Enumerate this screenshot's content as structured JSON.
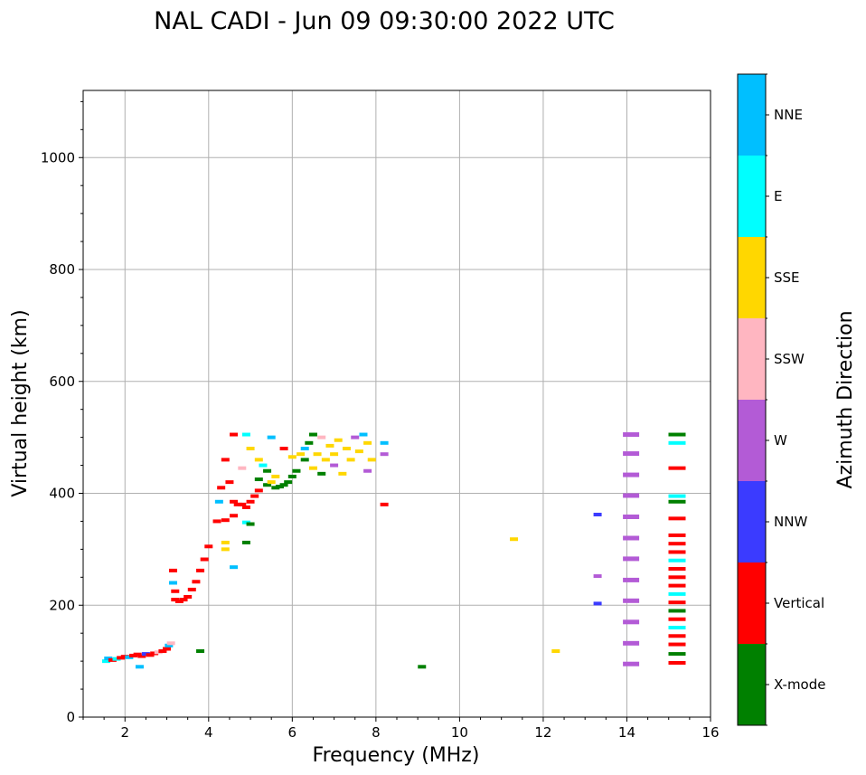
{
  "chart_data": {
    "type": "scatter",
    "title": "NAL CADI - Jun 09 09:30:00 2022 UTC",
    "xlabel": "Frequency (MHz)",
    "ylabel": "Virtual height (km)",
    "xlim": [
      1,
      16
    ],
    "ylim": [
      0,
      1120
    ],
    "xticks": [
      2,
      4,
      6,
      8,
      10,
      12,
      14,
      16
    ],
    "yticks": [
      0,
      200,
      400,
      600,
      800,
      1000
    ],
    "grid": true,
    "colorbar": {
      "title": "Azimuth Direction",
      "categories": [
        {
          "name": "X-mode",
          "color": "#008000"
        },
        {
          "name": "Vertical",
          "color": "#ff0000"
        },
        {
          "name": "NNW",
          "color": "#3b3bff"
        },
        {
          "name": "W",
          "color": "#b35bd6"
        },
        {
          "name": "SSW",
          "color": "#ffb6c1"
        },
        {
          "name": "SSE",
          "color": "#ffd700"
        },
        {
          "name": "E",
          "color": "#00ffff"
        },
        {
          "name": "NNE",
          "color": "#00bfff"
        }
      ]
    },
    "points": [
      {
        "f": 1.55,
        "h": 100,
        "c": "E"
      },
      {
        "f": 1.6,
        "h": 105,
        "c": "NNE"
      },
      {
        "f": 1.7,
        "h": 102,
        "c": "Vertical"
      },
      {
        "f": 1.8,
        "h": 104,
        "c": "E"
      },
      {
        "f": 1.9,
        "h": 106,
        "c": "Vertical"
      },
      {
        "f": 2.0,
        "h": 108,
        "c": "Vertical"
      },
      {
        "f": 2.1,
        "h": 107,
        "c": "NNE"
      },
      {
        "f": 2.2,
        "h": 110,
        "c": "Vertical"
      },
      {
        "f": 2.3,
        "h": 112,
        "c": "Vertical"
      },
      {
        "f": 2.4,
        "h": 109,
        "c": "Vertical"
      },
      {
        "f": 2.5,
        "h": 113,
        "c": "NNW"
      },
      {
        "f": 2.6,
        "h": 111,
        "c": "Vertical"
      },
      {
        "f": 2.7,
        "h": 114,
        "c": "Vertical"
      },
      {
        "f": 2.8,
        "h": 116,
        "c": "SSW"
      },
      {
        "f": 2.9,
        "h": 118,
        "c": "Vertical"
      },
      {
        "f": 3.0,
        "h": 122,
        "c": "Vertical"
      },
      {
        "f": 3.05,
        "h": 128,
        "c": "NNE"
      },
      {
        "f": 3.1,
        "h": 132,
        "c": "SSW"
      },
      {
        "f": 2.35,
        "h": 90,
        "c": "NNE"
      },
      {
        "f": 3.8,
        "h": 118,
        "c": "X-mode"
      },
      {
        "f": 3.15,
        "h": 262,
        "c": "Vertical"
      },
      {
        "f": 3.15,
        "h": 240,
        "c": "NNE"
      },
      {
        "f": 3.2,
        "h": 225,
        "c": "Vertical"
      },
      {
        "f": 3.2,
        "h": 210,
        "c": "Vertical"
      },
      {
        "f": 3.3,
        "h": 207,
        "c": "Vertical"
      },
      {
        "f": 3.4,
        "h": 210,
        "c": "Vertical"
      },
      {
        "f": 3.5,
        "h": 215,
        "c": "Vertical"
      },
      {
        "f": 3.6,
        "h": 228,
        "c": "Vertical"
      },
      {
        "f": 3.7,
        "h": 242,
        "c": "Vertical"
      },
      {
        "f": 3.8,
        "h": 262,
        "c": "Vertical"
      },
      {
        "f": 3.9,
        "h": 282,
        "c": "Vertical"
      },
      {
        "f": 4.0,
        "h": 305,
        "c": "Vertical"
      },
      {
        "f": 4.2,
        "h": 350,
        "c": "Vertical"
      },
      {
        "f": 4.25,
        "h": 385,
        "c": "NNE"
      },
      {
        "f": 4.3,
        "h": 410,
        "c": "Vertical"
      },
      {
        "f": 4.4,
        "h": 352,
        "c": "Vertical"
      },
      {
        "f": 4.4,
        "h": 460,
        "c": "Vertical"
      },
      {
        "f": 4.4,
        "h": 300,
        "c": "SSE"
      },
      {
        "f": 4.4,
        "h": 312,
        "c": "SSE"
      },
      {
        "f": 4.5,
        "h": 420,
        "c": "Vertical"
      },
      {
        "f": 4.6,
        "h": 360,
        "c": "Vertical"
      },
      {
        "f": 4.6,
        "h": 385,
        "c": "Vertical"
      },
      {
        "f": 4.6,
        "h": 505,
        "c": "Vertical"
      },
      {
        "f": 4.6,
        "h": 268,
        "c": "NNE"
      },
      {
        "f": 4.7,
        "h": 380,
        "c": "Vertical"
      },
      {
        "f": 4.8,
        "h": 380,
        "c": "Vertical"
      },
      {
        "f": 4.8,
        "h": 445,
        "c": "SSW"
      },
      {
        "f": 4.9,
        "h": 375,
        "c": "Vertical"
      },
      {
        "f": 4.9,
        "h": 312,
        "c": "X-mode"
      },
      {
        "f": 4.9,
        "h": 348,
        "c": "E"
      },
      {
        "f": 4.9,
        "h": 505,
        "c": "E"
      },
      {
        "f": 5.0,
        "h": 345,
        "c": "X-mode"
      },
      {
        "f": 5.0,
        "h": 385,
        "c": "Vertical"
      },
      {
        "f": 5.0,
        "h": 480,
        "c": "SSE"
      },
      {
        "f": 5.1,
        "h": 395,
        "c": "Vertical"
      },
      {
        "f": 5.2,
        "h": 405,
        "c": "Vertical"
      },
      {
        "f": 5.2,
        "h": 425,
        "c": "X-mode"
      },
      {
        "f": 5.2,
        "h": 460,
        "c": "SSE"
      },
      {
        "f": 5.3,
        "h": 450,
        "c": "E"
      },
      {
        "f": 5.4,
        "h": 440,
        "c": "X-mode"
      },
      {
        "f": 5.4,
        "h": 415,
        "c": "X-mode"
      },
      {
        "f": 5.5,
        "h": 420,
        "c": "SSE"
      },
      {
        "f": 5.5,
        "h": 500,
        "c": "NNE"
      },
      {
        "f": 5.6,
        "h": 410,
        "c": "X-mode"
      },
      {
        "f": 5.6,
        "h": 430,
        "c": "SSE"
      },
      {
        "f": 5.7,
        "h": 412,
        "c": "X-mode"
      },
      {
        "f": 5.8,
        "h": 415,
        "c": "X-mode"
      },
      {
        "f": 5.8,
        "h": 480,
        "c": "Vertical"
      },
      {
        "f": 5.9,
        "h": 420,
        "c": "X-mode"
      },
      {
        "f": 6.0,
        "h": 430,
        "c": "X-mode"
      },
      {
        "f": 6.0,
        "h": 465,
        "c": "SSE"
      },
      {
        "f": 6.1,
        "h": 440,
        "c": "X-mode"
      },
      {
        "f": 6.2,
        "h": 470,
        "c": "SSE"
      },
      {
        "f": 6.3,
        "h": 460,
        "c": "X-mode"
      },
      {
        "f": 6.3,
        "h": 480,
        "c": "NNE"
      },
      {
        "f": 6.4,
        "h": 490,
        "c": "X-mode"
      },
      {
        "f": 6.5,
        "h": 505,
        "c": "X-mode"
      },
      {
        "f": 6.5,
        "h": 445,
        "c": "SSE"
      },
      {
        "f": 6.6,
        "h": 470,
        "c": "SSE"
      },
      {
        "f": 6.7,
        "h": 435,
        "c": "X-mode"
      },
      {
        "f": 6.7,
        "h": 500,
        "c": "SSW"
      },
      {
        "f": 6.8,
        "h": 460,
        "c": "SSE"
      },
      {
        "f": 6.9,
        "h": 485,
        "c": "SSE"
      },
      {
        "f": 7.0,
        "h": 450,
        "c": "W"
      },
      {
        "f": 7.0,
        "h": 470,
        "c": "SSE"
      },
      {
        "f": 7.1,
        "h": 495,
        "c": "SSE"
      },
      {
        "f": 7.2,
        "h": 435,
        "c": "SSE"
      },
      {
        "f": 7.3,
        "h": 480,
        "c": "SSE"
      },
      {
        "f": 7.4,
        "h": 460,
        "c": "SSE"
      },
      {
        "f": 7.5,
        "h": 500,
        "c": "W"
      },
      {
        "f": 7.6,
        "h": 475,
        "c": "SSE"
      },
      {
        "f": 7.7,
        "h": 505,
        "c": "NNE"
      },
      {
        "f": 7.8,
        "h": 440,
        "c": "W"
      },
      {
        "f": 7.8,
        "h": 490,
        "c": "SSE"
      },
      {
        "f": 7.9,
        "h": 460,
        "c": "SSE"
      },
      {
        "f": 8.2,
        "h": 470,
        "c": "W"
      },
      {
        "f": 8.2,
        "h": 490,
        "c": "NNE"
      },
      {
        "f": 8.2,
        "h": 380,
        "c": "Vertical"
      },
      {
        "f": 9.1,
        "h": 90,
        "c": "X-mode"
      },
      {
        "f": 11.3,
        "h": 318,
        "c": "SSE"
      },
      {
        "f": 12.3,
        "h": 118,
        "c": "SSE"
      },
      {
        "f": 13.3,
        "h": 362,
        "c": "NNW"
      },
      {
        "f": 13.3,
        "h": 252,
        "c": "W"
      },
      {
        "f": 13.3,
        "h": 203,
        "c": "NNW"
      },
      {
        "f": 14.1,
        "h": 95,
        "c": "W"
      },
      {
        "f": 14.1,
        "h": 132,
        "c": "W"
      },
      {
        "f": 14.1,
        "h": 170,
        "c": "W"
      },
      {
        "f": 14.1,
        "h": 208,
        "c": "W"
      },
      {
        "f": 14.1,
        "h": 245,
        "c": "W"
      },
      {
        "f": 14.1,
        "h": 283,
        "c": "W"
      },
      {
        "f": 14.1,
        "h": 320,
        "c": "W"
      },
      {
        "f": 14.1,
        "h": 358,
        "c": "W"
      },
      {
        "f": 14.1,
        "h": 396,
        "c": "W"
      },
      {
        "f": 14.1,
        "h": 433,
        "c": "W"
      },
      {
        "f": 14.1,
        "h": 471,
        "c": "W"
      },
      {
        "f": 14.1,
        "h": 505,
        "c": "W"
      },
      {
        "f": 15.2,
        "h": 97,
        "c": "Vertical"
      },
      {
        "f": 15.2,
        "h": 113,
        "c": "X-mode"
      },
      {
        "f": 15.2,
        "h": 130,
        "c": "Vertical"
      },
      {
        "f": 15.2,
        "h": 145,
        "c": "Vertical"
      },
      {
        "f": 15.2,
        "h": 160,
        "c": "E"
      },
      {
        "f": 15.2,
        "h": 175,
        "c": "Vertical"
      },
      {
        "f": 15.2,
        "h": 190,
        "c": "X-mode"
      },
      {
        "f": 15.2,
        "h": 205,
        "c": "Vertical"
      },
      {
        "f": 15.2,
        "h": 220,
        "c": "E"
      },
      {
        "f": 15.2,
        "h": 235,
        "c": "Vertical"
      },
      {
        "f": 15.2,
        "h": 250,
        "c": "Vertical"
      },
      {
        "f": 15.2,
        "h": 265,
        "c": "Vertical"
      },
      {
        "f": 15.2,
        "h": 280,
        "c": "E"
      },
      {
        "f": 15.2,
        "h": 295,
        "c": "Vertical"
      },
      {
        "f": 15.2,
        "h": 310,
        "c": "Vertical"
      },
      {
        "f": 15.2,
        "h": 325,
        "c": "Vertical"
      },
      {
        "f": 15.2,
        "h": 355,
        "c": "Vertical"
      },
      {
        "f": 15.2,
        "h": 385,
        "c": "X-mode"
      },
      {
        "f": 15.2,
        "h": 395,
        "c": "E"
      },
      {
        "f": 15.2,
        "h": 445,
        "c": "Vertical"
      },
      {
        "f": 15.2,
        "h": 490,
        "c": "E"
      },
      {
        "f": 15.2,
        "h": 505,
        "c": "X-mode"
      }
    ]
  }
}
